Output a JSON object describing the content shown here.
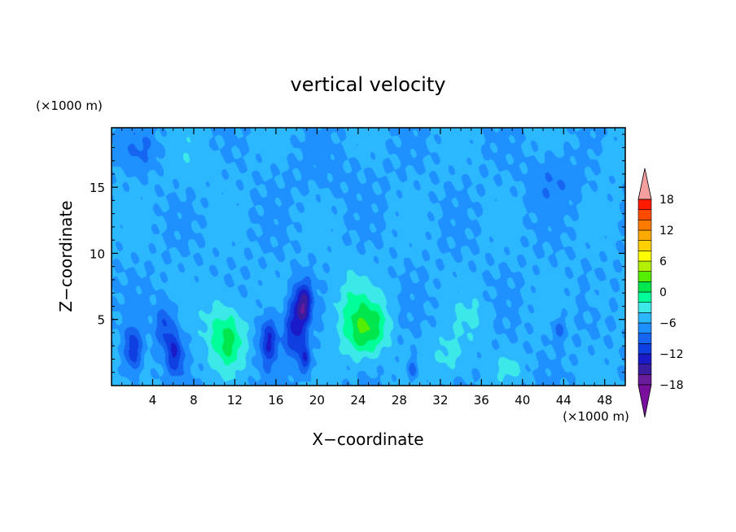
{
  "chart_data": {
    "type": "heatmap",
    "title": "vertical velocity",
    "xlabel": "X−coordinate",
    "ylabel": "Z−coordinate",
    "x_unit": "(×1000 m)",
    "y_unit": "(×1000 m)",
    "xlim": [
      0,
      50
    ],
    "ylim": [
      0,
      19.5
    ],
    "x_ticks": [
      4,
      8,
      12,
      16,
      20,
      24,
      28,
      32,
      36,
      40,
      44,
      48
    ],
    "x_tick_labels": [
      "4",
      "8",
      "12",
      "16",
      "20",
      "24",
      "28",
      "32",
      "36",
      "40",
      "44",
      "48"
    ],
    "y_ticks": [
      5,
      10,
      15
    ],
    "y_tick_labels": [
      "5",
      "10",
      "15"
    ],
    "colorbar": {
      "min": -21,
      "max": 21,
      "step": 3,
      "tick_values": [
        18,
        12,
        6,
        0,
        -6,
        -12,
        -18
      ],
      "tick_labels": [
        "18",
        "12",
        "6",
        "0",
        "−6",
        "−12",
        "−18"
      ],
      "colors": [
        "#6a1b9a",
        "#3a1ca0",
        "#1a1ac8",
        "#0f3fe0",
        "#1565f0",
        "#1e90ff",
        "#2cb8ff",
        "#3de8e8",
        "#00ff99",
        "#00e64d",
        "#55ee00",
        "#b0f000",
        "#ffff00",
        "#ffd000",
        "#ffaa00",
        "#ff7b00",
        "#ff4a00",
        "#ff1a00"
      ],
      "under_color": "#7a0f9e",
      "over_color": "#f4a0a0"
    },
    "features": [
      {
        "x": 11.5,
        "z": 3.3,
        "value": 8,
        "sx": 1.6,
        "sz": 2.2
      },
      {
        "x": 10.3,
        "z": 4.7,
        "value": 4,
        "sx": 1.8,
        "sz": 2.6
      },
      {
        "x": 24.5,
        "z": 4.0,
        "value": 8,
        "sx": 1.6,
        "sz": 1.9
      },
      {
        "x": 23.6,
        "z": 5.8,
        "value": 5,
        "sx": 2.4,
        "sz": 3.0
      },
      {
        "x": 26.2,
        "z": 4.6,
        "value": 4,
        "sx": 1.2,
        "sz": 2.0
      },
      {
        "x": 33.0,
        "z": 2.3,
        "value": 4,
        "sx": 1.9,
        "sz": 1.6
      },
      {
        "x": 35.0,
        "z": 5.2,
        "value": 3,
        "sx": 1.8,
        "sz": 1.6
      },
      {
        "x": 38.7,
        "z": 1.4,
        "value": 4,
        "sx": 1.2,
        "sz": 0.9
      },
      {
        "x": 2.1,
        "z": 2.7,
        "value": -9,
        "sx": 0.8,
        "sz": 1.8
      },
      {
        "x": 5.2,
        "z": 4.4,
        "value": -7,
        "sx": 0.9,
        "sz": 1.8
      },
      {
        "x": 6.2,
        "z": 2.4,
        "value": -9,
        "sx": 0.8,
        "sz": 1.6
      },
      {
        "x": 15.3,
        "z": 3.4,
        "value": -10,
        "sx": 0.9,
        "sz": 1.8
      },
      {
        "x": 17.8,
        "z": 4.2,
        "value": -10,
        "sx": 1.0,
        "sz": 2.3
      },
      {
        "x": 18.7,
        "z": 6.2,
        "value": -13,
        "sx": 0.8,
        "sz": 1.6
      },
      {
        "x": 18.9,
        "z": 2.0,
        "value": -9,
        "sx": 0.5,
        "sz": 1.2
      },
      {
        "x": 29.3,
        "z": 1.2,
        "value": -6,
        "sx": 0.5,
        "sz": 0.8
      },
      {
        "x": 43.5,
        "z": 4.2,
        "value": -5,
        "sx": 0.6,
        "sz": 0.9
      },
      {
        "x": 3.0,
        "z": 17.8,
        "value": -3,
        "sx": 1.8,
        "sz": 1.5
      },
      {
        "x": 43.0,
        "z": 15.5,
        "value": -3,
        "sx": 2.5,
        "sz": 2.0
      },
      {
        "x": 21.0,
        "z": 16.0,
        "value": -1,
        "sx": 5.0,
        "sz": 2.0
      },
      {
        "x": 8.0,
        "z": 17.0,
        "value": 1.5,
        "sx": 3.0,
        "sz": 2.0
      },
      {
        "x": 48.5,
        "z": 17.5,
        "value": 2,
        "sx": 1.2,
        "sz": 1.5
      },
      {
        "x": 47.5,
        "z": 6.5,
        "value": 2,
        "sx": 1.0,
        "sz": 1.5
      }
    ]
  }
}
